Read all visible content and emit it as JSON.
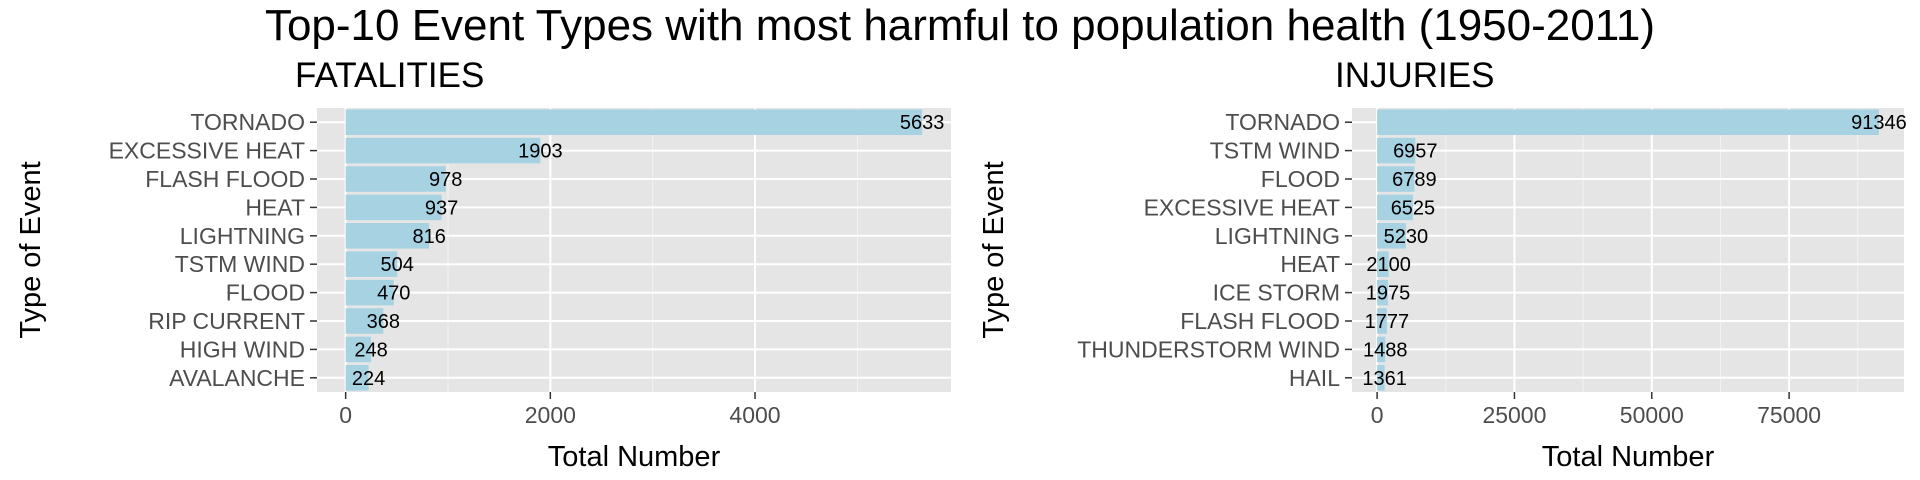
{
  "title": "Top-10 Event Types with most harmful to population health (1950-2011)",
  "colors": {
    "bar": "#a6d2e2",
    "panel_bg": "#e5e5e5",
    "grid_major": "#ffffff",
    "grid_minor": "#f2f2f2",
    "tick_text": "#4d4d4d"
  },
  "chart_data": [
    {
      "type": "bar",
      "orientation": "horizontal",
      "title": "FATALITIES",
      "xlabel": "Total Number",
      "ylabel": "Type of Event",
      "categories": [
        "TORNADO",
        "EXCESSIVE HEAT",
        "FLASH FLOOD",
        "HEAT",
        "LIGHTNING",
        "TSTM WIND",
        "FLOOD",
        "RIP CURRENT",
        "HIGH WIND",
        "AVALANCHE"
      ],
      "values": [
        5633,
        1903,
        978,
        937,
        816,
        504,
        470,
        368,
        248,
        224
      ],
      "xlim": [
        -280,
        5915
      ],
      "xticks": [
        0,
        2000,
        4000
      ],
      "minor_xticks": [
        1000,
        3000,
        5000
      ],
      "grid": true
    },
    {
      "type": "bar",
      "orientation": "horizontal",
      "title": "INJURIES",
      "xlabel": "Total Number",
      "ylabel": "Type of Event",
      "categories": [
        "TORNADO",
        "TSTM WIND",
        "FLOOD",
        "EXCESSIVE HEAT",
        "LIGHTNING",
        "HEAT",
        "ICE STORM",
        "FLASH FLOOD",
        "THUNDERSTORM WIND",
        "HAIL"
      ],
      "values": [
        91346,
        6957,
        6789,
        6525,
        5230,
        2100,
        1975,
        1777,
        1488,
        1361
      ],
      "xlim": [
        -4570,
        95916
      ],
      "xticks": [
        0,
        25000,
        50000,
        75000
      ],
      "minor_xticks": [
        12500,
        37500,
        62500,
        87500
      ],
      "grid": true
    }
  ]
}
